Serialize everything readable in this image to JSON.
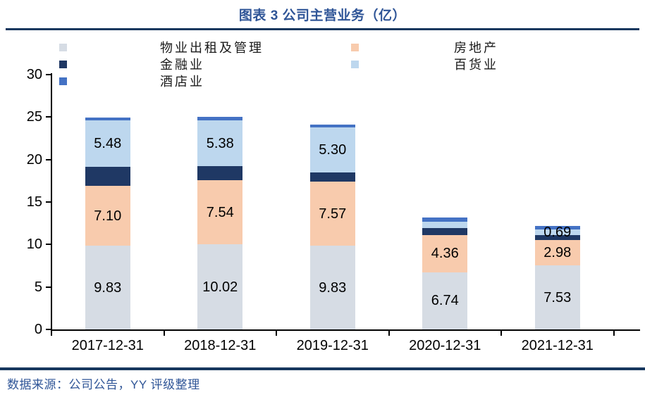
{
  "title": "图表 3 公司主营业务（亿）",
  "source": "数据来源：公司公告，YY 评级整理",
  "colors": {
    "rule": "#17375E",
    "title_text": "#2F5597",
    "source_text": "#2F5597",
    "axis": "#000000",
    "data_label": "#000000"
  },
  "chart_data": {
    "type": "bar",
    "stacked": true,
    "title": "图表 3 公司主营业务（亿）",
    "categories": [
      "2017-12-31",
      "2018-12-31",
      "2019-12-31",
      "2020-12-31",
      "2021-12-31"
    ],
    "series": [
      {
        "name": "物业出租及管理",
        "color": "#D6DCE4",
        "values": [
          9.83,
          10.02,
          9.83,
          6.74,
          7.53
        ],
        "labels": [
          "9.83",
          "10.02",
          "9.83",
          "6.74",
          "7.53"
        ]
      },
      {
        "name": "房地产",
        "color": "#F8CBAD",
        "values": [
          7.1,
          7.54,
          7.57,
          4.36,
          2.98
        ],
        "labels": [
          "7.10",
          "7.54",
          "7.57",
          "4.36",
          "2.98"
        ]
      },
      {
        "name": "金融业",
        "color": "#1F3864",
        "values": [
          2.2,
          1.65,
          1.05,
          0.85,
          0.6
        ],
        "labels": [
          null,
          null,
          null,
          null,
          null
        ]
      },
      {
        "name": "百货业",
        "color": "#BDD7EE",
        "values": [
          5.48,
          5.38,
          5.3,
          0.7,
          0.69
        ],
        "labels": [
          "5.48",
          "5.38",
          "5.30",
          null,
          "0.69"
        ]
      },
      {
        "name": "酒店业",
        "color": "#4472C4",
        "values": [
          0.35,
          0.4,
          0.35,
          0.55,
          0.4
        ],
        "labels": [
          null,
          null,
          null,
          null,
          null
        ]
      }
    ],
    "ylim": [
      0,
      30
    ],
    "y_ticks": [
      0,
      5,
      10,
      15,
      20,
      25,
      30
    ],
    "xlabel": "",
    "ylabel": "",
    "grid": false,
    "legend_position": "top-left, two columns"
  }
}
